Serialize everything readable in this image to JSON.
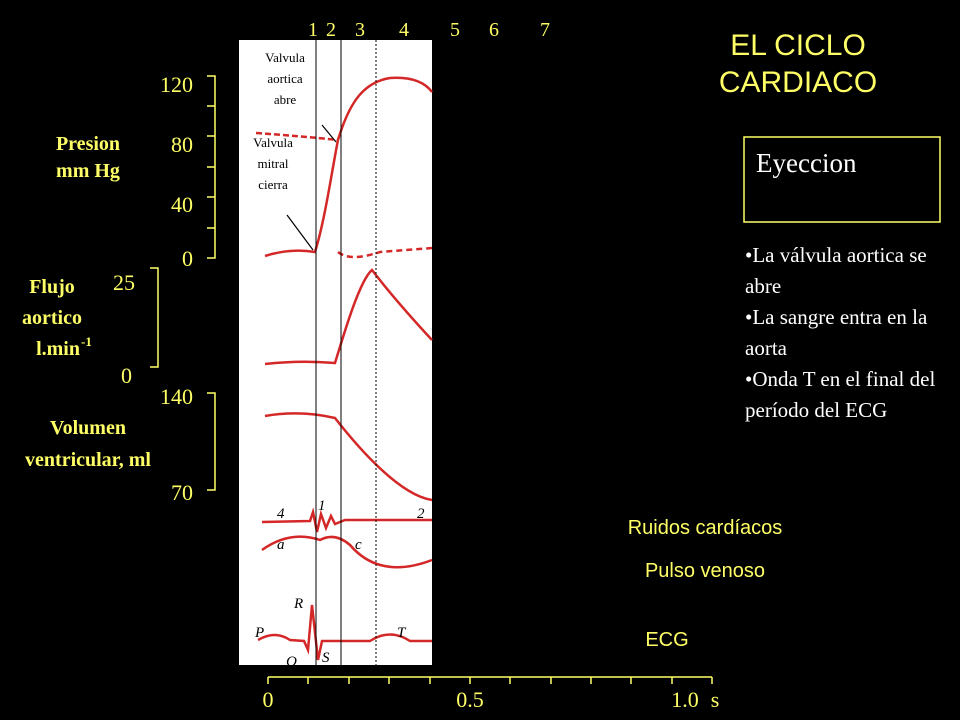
{
  "title": [
    "EL CICLO",
    "CARDIACO"
  ],
  "phases": [
    "1",
    "2",
    "3",
    "4",
    "5",
    "6",
    "7"
  ],
  "pressure": {
    "label": [
      "Presion",
      "mm Hg"
    ],
    "ticks": [
      "120",
      "80",
      "40",
      "0"
    ]
  },
  "flow": {
    "label": [
      "Flujo",
      "aortico",
      "l.min"
    ],
    "label_sup": "-1",
    "ticks": [
      "25",
      "0"
    ]
  },
  "volume": {
    "label": [
      "Volumen",
      "ventricular, ml"
    ],
    "ticks": [
      "140",
      "70"
    ]
  },
  "time_axis": {
    "ticks": [
      "0",
      "0.5",
      "1.0"
    ],
    "unit": "s"
  },
  "annotations": {
    "aortic": [
      "Valvula",
      "aortica",
      "abre"
    ],
    "mitral": [
      "Valvula",
      "mitral",
      "cierra"
    ]
  },
  "wave_labels": {
    "sound_4": "4",
    "sound_1": "1",
    "sound_2": "2",
    "a": "a",
    "c": "c",
    "R": "R",
    "P": "P",
    "T": "T",
    "Q": "Q",
    "S": "S"
  },
  "trace_labels": [
    "Ruidos cardíacos",
    "Pulso venoso",
    "ECG"
  ],
  "phase_box": "Eyeccion",
  "bullets": [
    "La válvula aortica se abre",
    "La sangre entra en la aorta",
    "Onda T en el final del período del ECG"
  ]
}
